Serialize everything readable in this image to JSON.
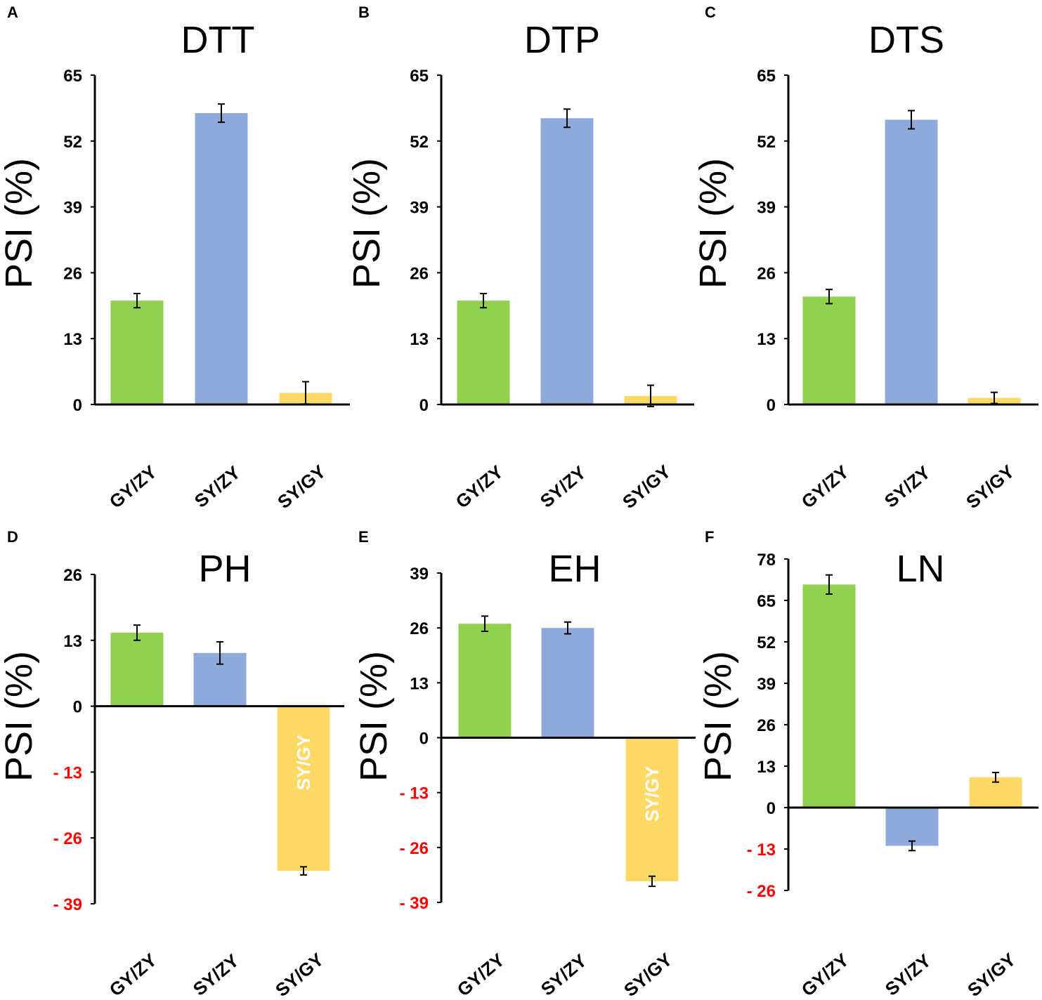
{
  "colors": {
    "bar_colors": [
      "#92d050",
      "#8eaadb",
      "#ffd966"
    ],
    "negative_tick_color": "#ff0000",
    "positive_tick_color": "#000000",
    "axis_color": "#000000"
  },
  "chart_data": [
    {
      "panel": "A",
      "type": "bar",
      "title": "DTT",
      "ylabel": "PSI (%)",
      "categories": [
        "GY/ZY",
        "SY/ZY",
        "SY/GY"
      ],
      "values": [
        20.5,
        57.5,
        2.3
      ],
      "errors": [
        1.4,
        1.8,
        2.2
      ],
      "ylim": [
        0,
        65
      ],
      "yticks": [
        0,
        13,
        26,
        39,
        52,
        65
      ]
    },
    {
      "panel": "B",
      "type": "bar",
      "title": "DTP",
      "ylabel": "PSI (%)",
      "categories": [
        "GY/ZY",
        "SY/ZY",
        "SY/GY"
      ],
      "values": [
        20.5,
        56.5,
        1.7
      ],
      "errors": [
        1.4,
        1.8,
        2.1
      ],
      "ylim": [
        0,
        65
      ],
      "yticks": [
        0,
        13,
        26,
        39,
        52,
        65
      ]
    },
    {
      "panel": "C",
      "type": "bar",
      "title": "DTS",
      "ylabel": "PSI (%)",
      "categories": [
        "GY/ZY",
        "SY/ZY",
        "SY/GY"
      ],
      "values": [
        21.3,
        56.2,
        1.3
      ],
      "errors": [
        1.4,
        1.8,
        1.1
      ],
      "ylim": [
        0,
        65
      ],
      "yticks": [
        0,
        13,
        26,
        39,
        52,
        65
      ]
    },
    {
      "panel": "D",
      "type": "bar",
      "title": "PH",
      "ylabel": "PSI (%)",
      "categories": [
        "GY/ZY",
        "SY/ZY",
        "SY/GY"
      ],
      "values": [
        14.5,
        10.5,
        -32.5
      ],
      "errors": [
        1.5,
        2.2,
        0.8
      ],
      "ylim": [
        -39,
        26
      ],
      "yticks": [
        -39,
        -26,
        -13,
        0,
        13,
        26
      ],
      "in_bar_label": "SY/GY"
    },
    {
      "panel": "E",
      "type": "bar",
      "title": "EH",
      "ylabel": "PSI (%)",
      "categories": [
        "GY/ZY",
        "SY/ZY",
        "SY/GY"
      ],
      "values": [
        27.0,
        26.0,
        -34.0
      ],
      "errors": [
        1.8,
        1.4,
        1.2
      ],
      "ylim": [
        -39,
        39
      ],
      "yticks": [
        -39,
        -26,
        -13,
        0,
        13,
        26,
        39
      ],
      "in_bar_label": "SY/GY"
    },
    {
      "panel": "F",
      "type": "bar",
      "title": "LN",
      "ylabel": "PSI (%)",
      "categories": [
        "GY/ZY",
        "SY/ZY",
        "SY/GY"
      ],
      "values": [
        70.0,
        -12.0,
        9.5
      ],
      "errors": [
        3.0,
        1.5,
        1.5
      ],
      "ylim": [
        -26,
        78
      ],
      "yticks": [
        -26,
        -13,
        0,
        13,
        26,
        39,
        52,
        65,
        78
      ]
    }
  ]
}
